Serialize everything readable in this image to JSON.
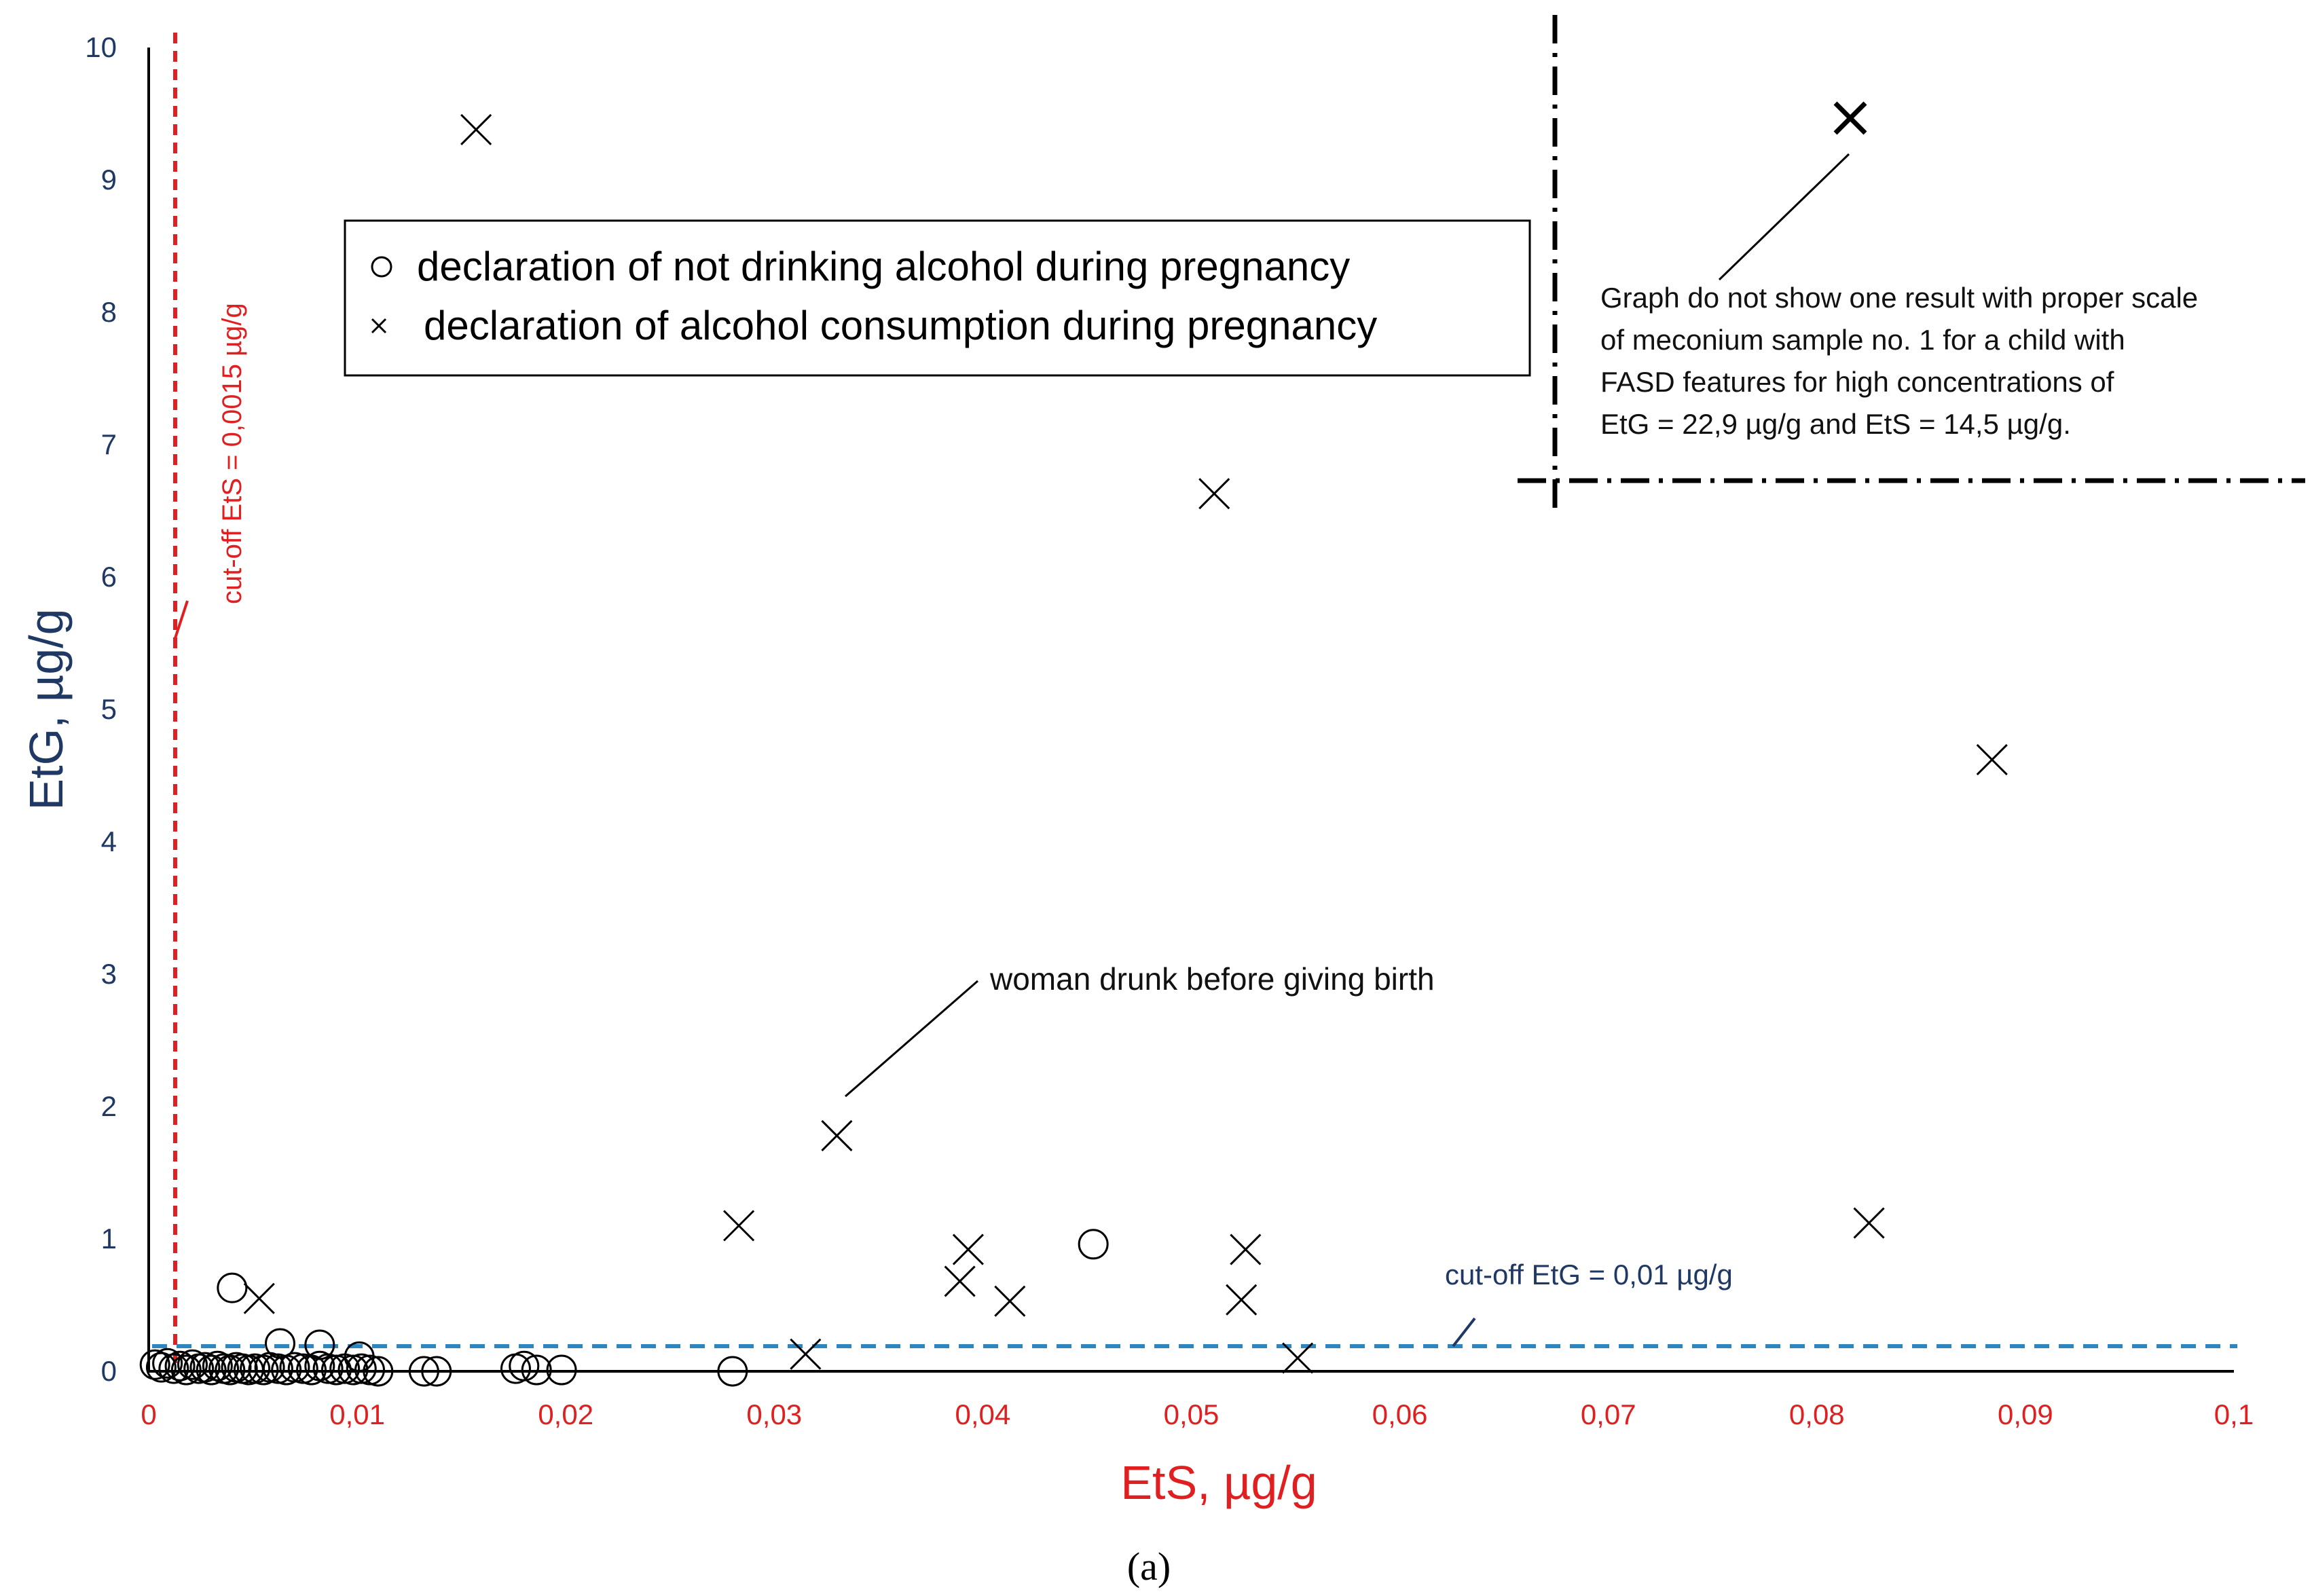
{
  "chart_data": {
    "type": "scatter",
    "xlabel": "EtS, µg/g",
    "ylabel": "EtG, µg/g",
    "xlim": [
      0,
      0.1
    ],
    "ylim": [
      0,
      10
    ],
    "x_ticks": [
      "0",
      "0,01",
      "0,02",
      "0,03",
      "0,04",
      "0,05",
      "0,06",
      "0,07",
      "0,08",
      "0,09",
      "0,1"
    ],
    "y_ticks": [
      "0",
      "1",
      "2",
      "3",
      "4",
      "5",
      "6",
      "7",
      "8",
      "9",
      "10"
    ],
    "legend": {
      "placement": "top-center",
      "entries": [
        {
          "marker": "o",
          "label": "declaration of not drinking alcohol during pregnancy"
        },
        {
          "marker": "x",
          "label": "declaration of alcohol consumption during pregnancy"
        }
      ]
    },
    "series": [
      {
        "marker": "o",
        "points": [
          [
            0.0003,
            0.05
          ],
          [
            0.0006,
            0.03
          ],
          [
            0.0009,
            0.06
          ],
          [
            0.0012,
            0.02
          ],
          [
            0.0015,
            0.04
          ],
          [
            0.0018,
            0.01
          ],
          [
            0.0021,
            0.05
          ],
          [
            0.0024,
            0.02
          ],
          [
            0.0027,
            0.03
          ],
          [
            0.003,
            0.01
          ],
          [
            0.0033,
            0.04
          ],
          [
            0.0036,
            0.02
          ],
          [
            0.0039,
            0.01
          ],
          [
            0.0042,
            0.03
          ],
          [
            0.0045,
            0.02
          ],
          [
            0.0048,
            0.01
          ],
          [
            0.0051,
            0.02
          ],
          [
            0.0055,
            0.01
          ],
          [
            0.0058,
            0.03
          ],
          [
            0.0062,
            0.02
          ],
          [
            0.0066,
            0.01
          ],
          [
            0.007,
            0.03
          ],
          [
            0.0074,
            0.02
          ],
          [
            0.0078,
            0.01
          ],
          [
            0.0082,
            0.04
          ],
          [
            0.0086,
            0.02
          ],
          [
            0.009,
            0.01
          ],
          [
            0.0094,
            0.02
          ],
          [
            0.0098,
            0.01
          ],
          [
            0.0102,
            0.02
          ],
          [
            0.0106,
            0.01
          ],
          [
            0.011,
            0.0
          ],
          [
            0.0132,
            0.0
          ],
          [
            0.0138,
            0.0
          ],
          [
            0.0176,
            0.02
          ],
          [
            0.018,
            0.04
          ],
          [
            0.0186,
            0.01
          ],
          [
            0.0198,
            0.01
          ],
          [
            0.028,
            0.0
          ],
          [
            0.004,
            0.63
          ],
          [
            0.0063,
            0.21
          ],
          [
            0.0082,
            0.2
          ],
          [
            0.0101,
            0.11
          ],
          [
            0.0453,
            0.96
          ]
        ]
      },
      {
        "marker": "x",
        "points": [
          [
            0.0157,
            9.38
          ],
          [
            0.0053,
            0.55
          ],
          [
            0.0283,
            1.1
          ],
          [
            0.0315,
            0.13
          ],
          [
            0.033,
            1.78
          ],
          [
            0.0389,
            0.68
          ],
          [
            0.0393,
            0.92
          ],
          [
            0.0413,
            0.53
          ],
          [
            0.0511,
            6.63
          ],
          [
            0.0524,
            0.54
          ],
          [
            0.0526,
            0.92
          ],
          [
            0.0551,
            0.1
          ],
          [
            0.0825,
            1.12
          ],
          [
            0.0884,
            4.62
          ]
        ]
      }
    ],
    "reference_lines": [
      {
        "axis": "x",
        "value": 0.0015,
        "label": "cut-off EtS = 0,0015 µg/g",
        "color": "#e02020"
      },
      {
        "axis": "y",
        "value": 0.01,
        "label": "cut-off EtG = 0,01 µg/g",
        "color": "#2e86c1"
      }
    ],
    "annotations": [
      {
        "text": "woman drunk before giving birth"
      }
    ],
    "inset_note": {
      "lines": [
        "Graph do not show one result with proper scale",
        "of meconium sample no. 1 for a child with",
        "FASD features for high concentrations of",
        "EtG = 22,9 µg/g and EtS = 14,5 µg/g."
      ],
      "point": {
        "EtG": 22.9,
        "EtS": 14.5
      }
    },
    "caption": "(a)",
    "grid": false
  }
}
